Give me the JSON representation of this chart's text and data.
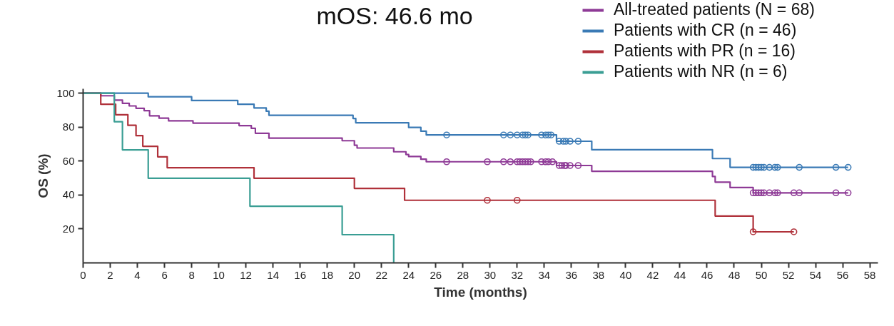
{
  "chart_data": {
    "type": "step",
    "xlabel": "Time (months)",
    "ylabel": "OS (%)",
    "annotations": [
      "mOS: 46.6 mo"
    ],
    "xlim": [
      0,
      58.6
    ],
    "ylim": [
      0,
      102.6
    ],
    "xticks": [
      0,
      2,
      4,
      6,
      8,
      10,
      12,
      14,
      16,
      18,
      20,
      22,
      24,
      26,
      28,
      30,
      32,
      34,
      36,
      38,
      40,
      42,
      44,
      46,
      48,
      50,
      52,
      54,
      56,
      58
    ],
    "yticks": [
      20,
      40,
      60,
      80,
      100
    ],
    "grid": false,
    "legend": "top right",
    "line_style": "solid",
    "series": [
      {
        "name": "All-treated patients (N = 68)",
        "color": "#8e3a96",
        "x": [
          0,
          1.3,
          2.3,
          2.9,
          3.4,
          3.9,
          4.5,
          4.9,
          5.6,
          6.3,
          8.1,
          11.5,
          12.4,
          12.7,
          13.7,
          19.1,
          20.0,
          20.2,
          22.9,
          23.8,
          24.0,
          24.9,
          25.3,
          34.9,
          37.5,
          46.4,
          46.6,
          47.7,
          49.4,
          56.4
        ],
        "values": [
          100,
          98.5,
          95.9,
          94.0,
          92.5,
          91.1,
          89.7,
          86.7,
          85.3,
          83.7,
          82.4,
          80.9,
          79.3,
          76.4,
          73.5,
          72.0,
          69.3,
          67.7,
          65.5,
          63.9,
          62.7,
          61.1,
          59.6,
          57.4,
          54.0,
          50.9,
          47.6,
          44.4,
          41.3,
          41.3
        ]
      },
      {
        "name": "Patients with CR (n = 46)",
        "color": "#3a7ab5",
        "x": [
          0,
          4.8,
          8.0,
          11.4,
          12.6,
          13.5,
          13.7,
          19.9,
          20.1,
          24.0,
          24.9,
          25.3,
          34.9,
          37.5,
          46.4,
          47.7,
          56.4
        ],
        "values": [
          100,
          97.9,
          95.7,
          93.5,
          91.3,
          89.4,
          87.0,
          85.1,
          82.6,
          79.8,
          77.6,
          75.4,
          71.7,
          66.7,
          61.5,
          56.3,
          56.3
        ]
      },
      {
        "name": "Patients with PR (n = 16)",
        "color": "#b0313a",
        "x": [
          0,
          1.3,
          2.4,
          3.3,
          3.9,
          4.4,
          5.5,
          6.2,
          12.6,
          20.0,
          23.7,
          46.6,
          49.4,
          52.4
        ],
        "values": [
          100,
          93.5,
          87.3,
          81.1,
          75.0,
          68.7,
          62.5,
          56.1,
          49.9,
          43.9,
          36.9,
          27.6,
          18.3,
          18.3
        ]
      },
      {
        "name": "Patients with NR (n = 6)",
        "color": "#3a9e94",
        "x": [
          0,
          2.3,
          2.9,
          4.8,
          12.3,
          19.1,
          22.9
        ],
        "values": [
          100,
          83.2,
          66.6,
          49.9,
          33.4,
          16.6,
          0
        ]
      },
      {
        "color": "#8e3a96",
        "type": "scatter",
        "marker": "circle",
        "x": [
          26.8,
          29.8,
          31.0,
          31.5,
          32.0,
          32.2,
          32.4,
          32.6,
          32.8,
          33.0,
          33.8,
          34.1,
          34.3,
          34.6,
          35.1,
          35.3,
          35.5,
          35.6,
          35.9,
          36.5,
          49.4,
          49.6,
          49.8,
          50.0,
          50.2,
          50.6,
          51.0,
          51.2,
          52.4,
          52.8,
          55.5,
          56.4
        ],
        "values": [
          59.6,
          59.6,
          59.6,
          59.6,
          59.6,
          59.6,
          59.6,
          59.6,
          59.6,
          59.6,
          59.6,
          59.6,
          59.6,
          59.6,
          57.4,
          57.4,
          57.4,
          57.4,
          57.4,
          57.4,
          41.3,
          41.3,
          41.3,
          41.3,
          41.3,
          41.3,
          41.3,
          41.3,
          41.3,
          41.3,
          41.3,
          41.3
        ]
      },
      {
        "color": "#3a7ab5",
        "type": "scatter",
        "marker": "circle",
        "x": [
          26.8,
          31.0,
          31.5,
          32.0,
          32.4,
          32.6,
          32.8,
          33.8,
          34.1,
          34.3,
          34.5,
          35.1,
          35.4,
          35.6,
          35.9,
          36.5,
          49.4,
          49.6,
          49.8,
          50.0,
          50.2,
          50.6,
          51.0,
          51.2,
          52.8,
          55.5,
          56.4
        ],
        "values": [
          75.4,
          75.4,
          75.4,
          75.4,
          75.4,
          75.4,
          75.4,
          75.4,
          75.4,
          75.4,
          75.4,
          71.7,
          71.7,
          71.7,
          71.7,
          71.7,
          56.3,
          56.3,
          56.3,
          56.3,
          56.3,
          56.3,
          56.3,
          56.3,
          56.3,
          56.3,
          56.3
        ]
      },
      {
        "color": "#b0313a",
        "type": "scatter",
        "marker": "circle",
        "x": [
          29.8,
          32.0,
          49.4,
          52.4
        ],
        "values": [
          36.9,
          36.9,
          18.3,
          18.3
        ]
      }
    ]
  }
}
